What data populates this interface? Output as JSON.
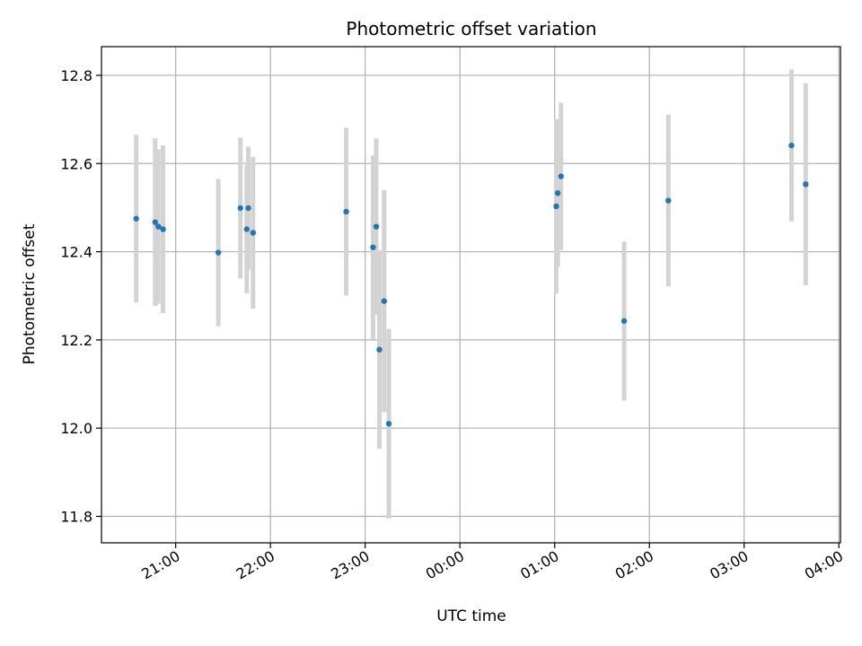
{
  "chart_data": {
    "type": "scatter",
    "title": "Photometric offset variation",
    "xlabel": "UTC time",
    "ylabel": "Photometric offset",
    "x_ticks": [
      {
        "label": "21:00",
        "hours": 21
      },
      {
        "label": "22:00",
        "hours": 22
      },
      {
        "label": "23:00",
        "hours": 23
      },
      {
        "label": "00:00",
        "hours": 24
      },
      {
        "label": "01:00",
        "hours": 25
      },
      {
        "label": "02:00",
        "hours": 26
      },
      {
        "label": "03:00",
        "hours": 27
      },
      {
        "label": "04:00",
        "hours": 28
      }
    ],
    "y_ticks": [
      {
        "label": "11.8",
        "value": 11.8
      },
      {
        "label": "12.0",
        "value": 12.0
      },
      {
        "label": "12.2",
        "value": 12.2
      },
      {
        "label": "12.4",
        "value": 12.4
      },
      {
        "label": "12.6",
        "value": 12.6
      },
      {
        "label": "12.8",
        "value": 12.8
      }
    ],
    "xlim": [
      "20:13",
      "04:01"
    ],
    "ylim": [
      11.74,
      12.865
    ],
    "grid": true,
    "colors": {
      "marker": "#1f77b4",
      "errorbar": "#d3d3d3",
      "grid": "#b0b0b0"
    },
    "points": [
      {
        "time": "20:35",
        "y": 12.475,
        "err": 0.19
      },
      {
        "time": "20:47",
        "y": 12.467,
        "err": 0.19
      },
      {
        "time": "20:49",
        "y": 12.457,
        "err": 0.175
      },
      {
        "time": "20:52",
        "y": 12.451,
        "err": 0.19
      },
      {
        "time": "21:27",
        "y": 12.398,
        "err": 0.167
      },
      {
        "time": "21:41",
        "y": 12.499,
        "err": 0.16
      },
      {
        "time": "21:45",
        "y": 12.451,
        "err": 0.145
      },
      {
        "time": "21:46",
        "y": 12.499,
        "err": 0.139
      },
      {
        "time": "21:49",
        "y": 12.443,
        "err": 0.172
      },
      {
        "time": "22:48",
        "y": 12.491,
        "err": 0.19
      },
      {
        "time": "23:05",
        "y": 12.41,
        "err": 0.208
      },
      {
        "time": "23:07",
        "y": 12.457,
        "err": 0.2
      },
      {
        "time": "23:09",
        "y": 12.178,
        "err": 0.225
      },
      {
        "time": "23:12",
        "y": 12.288,
        "err": 0.252
      },
      {
        "time": "23:15",
        "y": 12.01,
        "err": 0.215
      },
      {
        "time": "01:01",
        "y": 12.503,
        "err": 0.198
      },
      {
        "time": "01:02",
        "y": 12.533,
        "err": 0.167
      },
      {
        "time": "01:04",
        "y": 12.571,
        "err": 0.167
      },
      {
        "time": "01:44",
        "y": 12.243,
        "err": 0.18
      },
      {
        "time": "02:12",
        "y": 12.516,
        "err": 0.195
      },
      {
        "time": "03:30",
        "y": 12.641,
        "err": 0.172
      },
      {
        "time": "03:39",
        "y": 12.553,
        "err": 0.229
      }
    ]
  }
}
